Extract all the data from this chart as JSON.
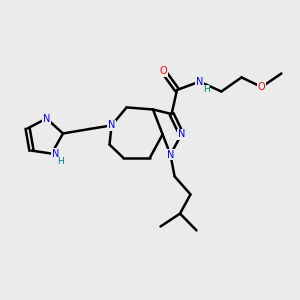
{
  "bg_color": "#ebebeb",
  "bond_color": "#000000",
  "bond_width": 1.8,
  "atom_colors": {
    "N": "#0000ff",
    "O": "#ff0000",
    "H": "#008080",
    "C": "#000000"
  },
  "font_size": 7.0,
  "title": ""
}
